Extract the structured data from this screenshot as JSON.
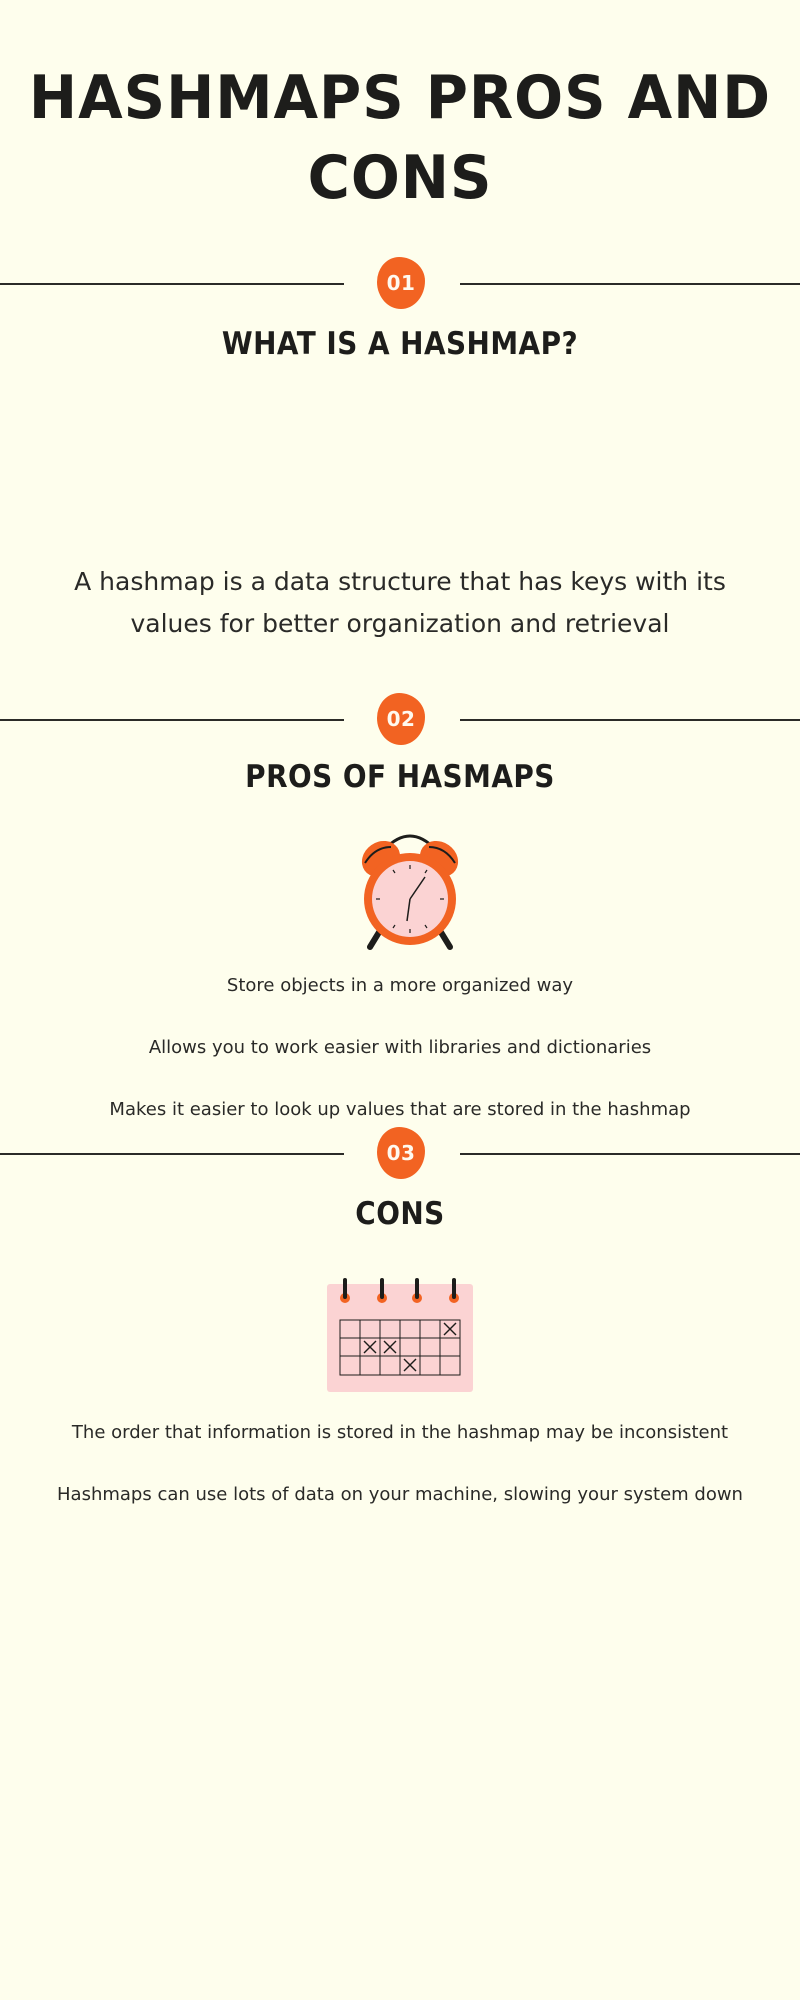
{
  "title": {
    "line1": "HASHMAPS PROS AND",
    "line2": "CONS"
  },
  "sections": [
    {
      "number": "01",
      "heading": "WHAT IS A HASHMAP?",
      "description": "A hashmap is a data structure that has keys with its values for better organization and retrieval"
    },
    {
      "number": "02",
      "heading": "PROS OF HASMAPS",
      "icon": "alarm-clock-icon",
      "items": [
        "Store objects in a more organized way",
        "Allows you to work easier with libraries and dictionaries",
        "Makes it easier to look up values that are stored in the hashmap"
      ]
    },
    {
      "number": "03",
      "heading": "CONS",
      "icon": "calendar-icon",
      "items": [
        "The order that information is stored in the hashmap may be inconsistent",
        "Hashmaps can use lots of data on your machine, slowing your system down"
      ]
    }
  ],
  "colors": {
    "background": "#fefeed",
    "accent": "#f26322",
    "text": "#1d1d1b",
    "pink": "#fbd3d3"
  }
}
